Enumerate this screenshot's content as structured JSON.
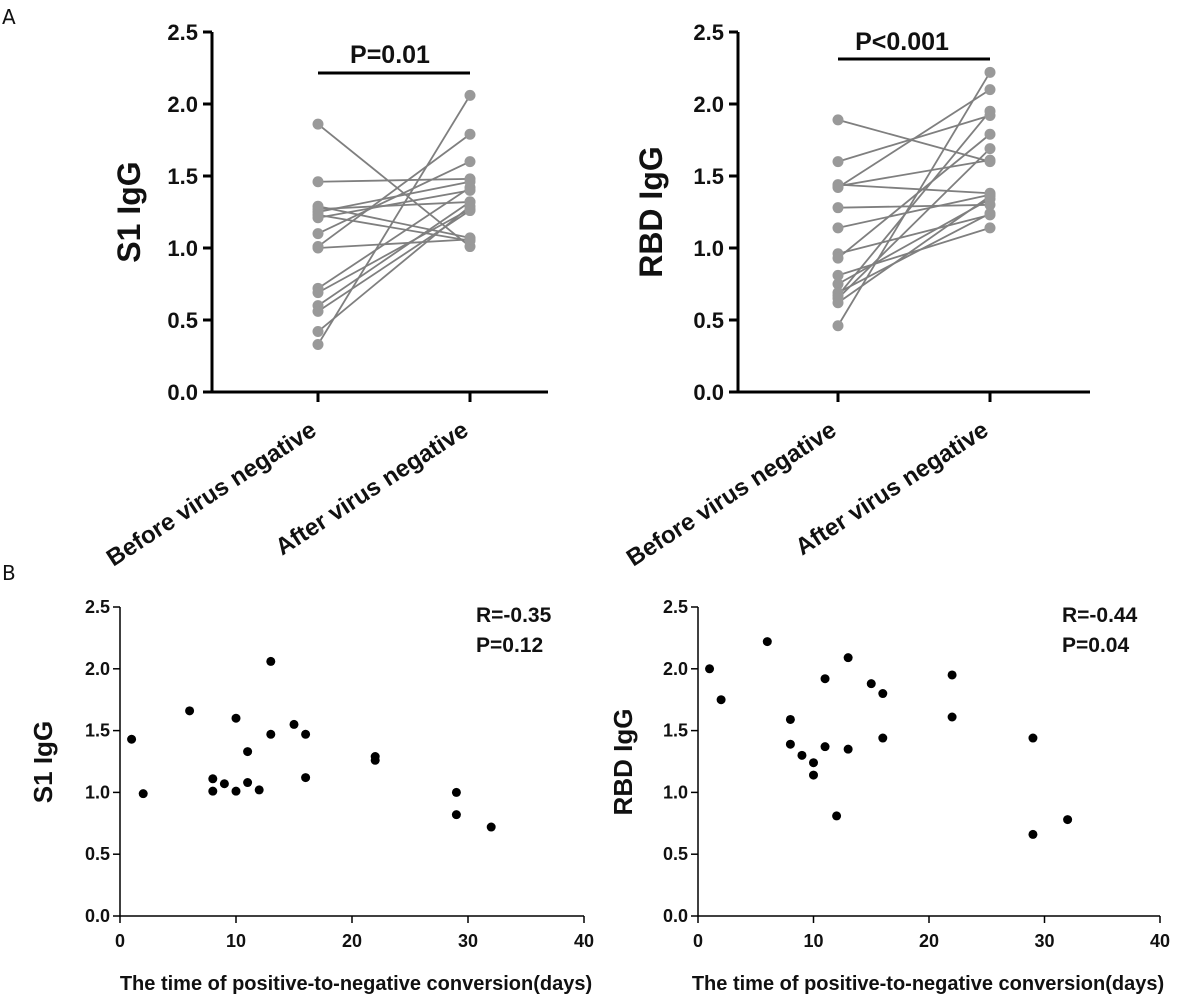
{
  "panel_labels": {
    "A": "A",
    "B": "B"
  },
  "chart_data": [
    {
      "id": "A1",
      "type": "paired-line",
      "ylabel": "S1 IgG",
      "categories": [
        "Before virus negative",
        "After virus negative"
      ],
      "ylim": [
        0,
        2.5
      ],
      "yticks": [
        "0.0",
        "0.5",
        "1.0",
        "1.5",
        "2.0",
        "2.5"
      ],
      "pvalue": "P=0.01",
      "marker_color": "#999999",
      "line_color": "#7f7f7f",
      "pairs": [
        [
          1.86,
          1.01
        ],
        [
          1.46,
          1.48
        ],
        [
          1.29,
          1.07
        ],
        [
          1.27,
          1.32
        ],
        [
          1.25,
          1.46
        ],
        [
          1.23,
          1.05
        ],
        [
          1.21,
          1.4
        ],
        [
          1.1,
          1.6
        ],
        [
          1.01,
          1.79
        ],
        [
          1.0,
          1.06
        ],
        [
          0.72,
          1.42
        ],
        [
          0.69,
          1.27
        ],
        [
          0.6,
          1.32
        ],
        [
          0.56,
          1.26
        ],
        [
          0.42,
          1.29
        ],
        [
          0.33,
          2.06
        ]
      ]
    },
    {
      "id": "A2",
      "type": "paired-line",
      "ylabel": "RBD IgG",
      "categories": [
        "Before virus negative",
        "After virus negative"
      ],
      "ylim": [
        0,
        2.5
      ],
      "yticks": [
        "0.0",
        "0.5",
        "1.0",
        "1.5",
        "2.0",
        "2.5"
      ],
      "pvalue": "P<0.001",
      "marker_color": "#999999",
      "line_color": "#7f7f7f",
      "pairs": [
        [
          1.89,
          1.6
        ],
        [
          1.6,
          1.92
        ],
        [
          1.44,
          1.38
        ],
        [
          1.43,
          1.61
        ],
        [
          1.42,
          2.1
        ],
        [
          1.28,
          1.3
        ],
        [
          1.14,
          1.37
        ],
        [
          0.96,
          1.23
        ],
        [
          0.93,
          1.79
        ],
        [
          0.81,
          1.14
        ],
        [
          0.75,
          1.34
        ],
        [
          0.69,
          1.24
        ],
        [
          0.67,
          1.95
        ],
        [
          0.65,
          1.69
        ],
        [
          0.62,
          1.36
        ],
        [
          0.46,
          2.22
        ]
      ]
    },
    {
      "id": "B1",
      "type": "scatter",
      "ylabel": "S1 IgG",
      "xlabel": "The time of positive-to-negative conversion(days)",
      "xlim": [
        0,
        40
      ],
      "ylim": [
        0,
        2.5
      ],
      "xticks": [
        "0",
        "10",
        "20",
        "30",
        "40"
      ],
      "yticks": [
        "0.0",
        "0.5",
        "1.0",
        "1.5",
        "2.0",
        "2.5"
      ],
      "r_text": "R=-0.35",
      "p_text": "P=0.12",
      "marker_color": "#000000",
      "x": [
        1,
        2,
        6,
        8,
        8,
        9,
        10,
        10,
        11,
        11,
        12,
        13,
        13,
        15,
        16,
        16,
        22,
        22,
        29,
        29,
        32
      ],
      "y": [
        1.43,
        0.99,
        1.66,
        1.11,
        1.01,
        1.07,
        1.6,
        1.01,
        1.33,
        1.08,
        1.02,
        2.06,
        1.47,
        1.55,
        1.47,
        1.12,
        1.29,
        1.26,
        1.0,
        0.82,
        0.72
      ]
    },
    {
      "id": "B2",
      "type": "scatter",
      "ylabel": "RBD IgG",
      "xlabel": "The time of positive-to-negative conversion(days)",
      "xlim": [
        0,
        40
      ],
      "ylim": [
        0,
        2.5
      ],
      "xticks": [
        "0",
        "10",
        "20",
        "30",
        "40"
      ],
      "yticks": [
        "0.0",
        "0.5",
        "1.0",
        "1.5",
        "2.0",
        "2.5"
      ],
      "r_text": "R=-0.44",
      "p_text": "P=0.04",
      "marker_color": "#000000",
      "x": [
        1,
        2,
        6,
        8,
        8,
        9,
        10,
        10,
        11,
        11,
        12,
        13,
        13,
        15,
        16,
        16,
        22,
        22,
        29,
        29,
        32
      ],
      "y": [
        2.0,
        1.75,
        2.22,
        1.59,
        1.39,
        1.3,
        1.24,
        1.14,
        1.92,
        1.37,
        0.81,
        2.09,
        1.35,
        1.88,
        1.8,
        1.44,
        1.95,
        1.61,
        1.44,
        0.66,
        0.78
      ]
    }
  ]
}
